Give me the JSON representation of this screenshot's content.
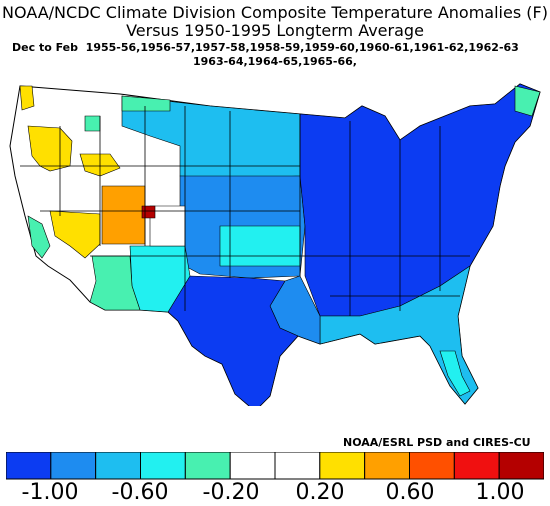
{
  "title_line1": "NOAA/NCDC Climate Division Composite Temperature Anomalies (F)",
  "title_line2": "Versus 1950-1995 Longterm Average",
  "period_label": "Dec to Feb",
  "years_line1": "1955-56,1956-57,1957-58,1958-59,1959-60,1960-61,1961-62,1962-63",
  "years_line2": "1963-64,1964-65,1965-66,",
  "credit": "NOAA/ESRL PSD and CIRES-CU",
  "colorbar": {
    "colors": [
      "#0c3cf2",
      "#1e8cf0",
      "#1ebef0",
      "#22f0f0",
      "#48f0b0",
      "#ffffff",
      "#ffffff",
      "#ffe000",
      "#ffa000",
      "#ff5000",
      "#f01010",
      "#b40000"
    ],
    "tick_labels": [
      "-1.00",
      "-0.60",
      "-0.20",
      "0.20",
      "0.60",
      "1.00"
    ]
  },
  "map": {
    "region": "contiguous-united-states",
    "anomaly_regions": [
      {
        "area": "eastern-us",
        "class": "strong-cold",
        "color": "#0c3cf2"
      },
      {
        "area": "texas-gulf",
        "class": "strong-cold",
        "color": "#0c3cf2"
      },
      {
        "area": "central-plains",
        "class": "cold",
        "color": "#1e8cf0"
      },
      {
        "area": "southeast",
        "class": "moderate-cold",
        "color": "#1ebef0"
      },
      {
        "area": "northern-plains",
        "class": "moderate-cold",
        "color": "#1ebef0"
      },
      {
        "area": "new-mexico",
        "class": "slight-cold",
        "color": "#22f0f0"
      },
      {
        "area": "arizona",
        "class": "weak-cold",
        "color": "#48f0b0"
      },
      {
        "area": "california-valley",
        "class": "weak-cold",
        "color": "#48f0b0"
      },
      {
        "area": "northern-maine",
        "class": "weak-cold",
        "color": "#48f0b0"
      },
      {
        "area": "west-neutral",
        "class": "neutral",
        "color": "#ffffff"
      },
      {
        "area": "oregon-idaho",
        "class": "warm",
        "color": "#ffe000"
      },
      {
        "area": "nevada",
        "class": "warm",
        "color": "#ffe000"
      },
      {
        "area": "utah",
        "class": "warmer",
        "color": "#ffa000"
      },
      {
        "area": "nw-colorado",
        "class": "hot",
        "color": "#b40000"
      }
    ]
  }
}
